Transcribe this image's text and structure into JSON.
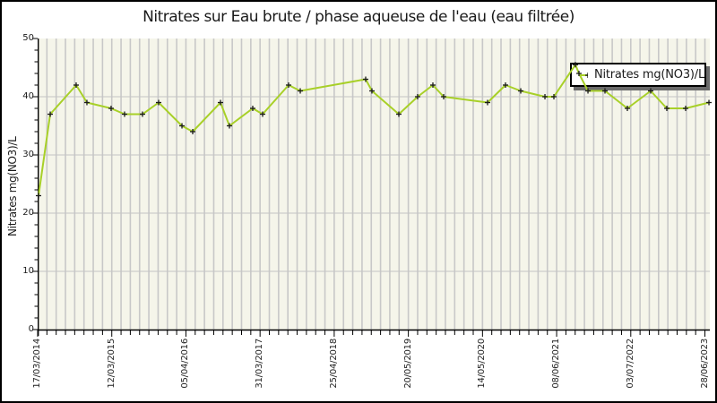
{
  "title": "Nitrates sur Eau brute / phase aqueuse de l'eau (eau filtrée)",
  "y_axis": {
    "label": "Nitrates mg(NO3)/L",
    "ticks": [
      "0",
      "10",
      "20",
      "30",
      "40",
      "50"
    ]
  },
  "x_axis": {
    "labels": [
      "17/03/2014",
      "12/03/2015",
      "05/04/2016",
      "31/03/2017",
      "25/04/2018",
      "20/05/2019",
      "14/05/2020",
      "08/06/2021",
      "03/07/2022",
      "28/06/2023"
    ]
  },
  "legend": {
    "label": "Nitrates mg(NO3)/L"
  },
  "colors": {
    "line": "#a8d028",
    "marker": "#1a1a1a",
    "stripe_band": "#f5f5ea",
    "stripe_line": "#c8c8c8",
    "h_grid": "#c4c4c4",
    "axis": "#000000",
    "legend_shadow": "#6b6b6b",
    "background": "#ffffff",
    "frame_border": "#000000"
  },
  "chart_data": {
    "type": "line",
    "title": "Nitrates sur Eau brute / phase aqueuse de l'eau (eau filtrée)",
    "xlabel": "",
    "ylabel": "Nitrates mg(NO3)/L",
    "ylim": [
      0,
      50
    ],
    "y_major_step": 10,
    "y_minor_step": 2,
    "grid": "horizontal major lines + vertical minor stripes",
    "legend_position": "top-right",
    "n_x_ticks": 73,
    "x_label_every_n_ticks": 8,
    "x_tick_labels_shown": [
      "17/03/2014",
      "12/03/2015",
      "05/04/2016",
      "31/03/2017",
      "25/04/2018",
      "20/05/2019",
      "14/05/2020",
      "08/06/2021",
      "03/07/2022",
      "28/06/2023"
    ],
    "series": [
      {
        "name": "Nitrates mg(NO3)/L",
        "marker": "plus",
        "points": [
          {
            "xf": 0.0013,
            "v": 23
          },
          {
            "xf": 0.0187,
            "v": 37
          },
          {
            "xf": 0.0573,
            "v": 42
          },
          {
            "xf": 0.0733,
            "v": 39
          },
          {
            "xf": 0.1093,
            "v": 38
          },
          {
            "xf": 0.1293,
            "v": 37
          },
          {
            "xf": 0.156,
            "v": 37
          },
          {
            "xf": 0.18,
            "v": 39
          },
          {
            "xf": 0.2147,
            "v": 35
          },
          {
            "xf": 0.2307,
            "v": 34
          },
          {
            "xf": 0.272,
            "v": 39
          },
          {
            "xf": 0.2853,
            "v": 35
          },
          {
            "xf": 0.32,
            "v": 38
          },
          {
            "xf": 0.3347,
            "v": 37
          },
          {
            "xf": 0.3733,
            "v": 42
          },
          {
            "xf": 0.3907,
            "v": 41
          },
          {
            "xf": 0.488,
            "v": 43
          },
          {
            "xf": 0.4973,
            "v": 41
          },
          {
            "xf": 0.5373,
            "v": 37
          },
          {
            "xf": 0.5653,
            "v": 40
          },
          {
            "xf": 0.588,
            "v": 42
          },
          {
            "xf": 0.604,
            "v": 40
          },
          {
            "xf": 0.6693,
            "v": 39
          },
          {
            "xf": 0.696,
            "v": 42
          },
          {
            "xf": 0.7187,
            "v": 41
          },
          {
            "xf": 0.7547,
            "v": 40
          },
          {
            "xf": 0.768,
            "v": 40
          },
          {
            "xf": 0.8,
            "v": 45.5
          },
          {
            "xf": 0.8053,
            "v": 44
          },
          {
            "xf": 0.8187,
            "v": 41
          },
          {
            "xf": 0.844,
            "v": 41
          },
          {
            "xf": 0.8773,
            "v": 38
          },
          {
            "xf": 0.912,
            "v": 41
          },
          {
            "xf": 0.936,
            "v": 38
          },
          {
            "xf": 0.964,
            "v": 38
          },
          {
            "xf": 0.9987,
            "v": 39
          }
        ]
      }
    ]
  }
}
